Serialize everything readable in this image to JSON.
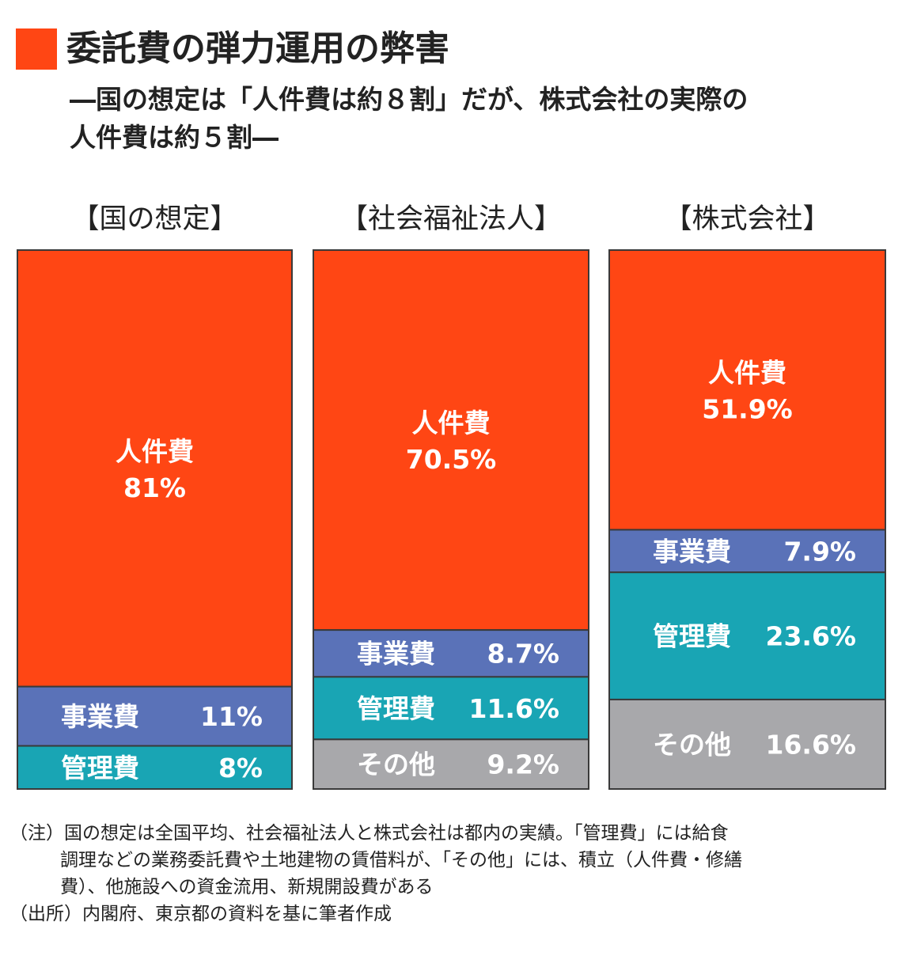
{
  "header": {
    "title": "委託費の弾力運用の弊害",
    "subtitle_line1": "―国の想定は「人件費は約８割」だが、株式会社の実際の",
    "subtitle_line2": "人件費は約５割―"
  },
  "chart_data": {
    "type": "bar",
    "stacked": true,
    "percent": true,
    "categories": [
      "【国の想定】",
      "【社会福祉法人】",
      "【株式会社】"
    ],
    "series": [
      {
        "name": "人件費",
        "values": [
          81,
          70.5,
          51.9
        ],
        "labels": [
          "81%",
          "70.5%",
          "51.9%"
        ],
        "color": "#ff4614"
      },
      {
        "name": "事業費",
        "values": [
          11,
          8.7,
          7.9
        ],
        "labels": [
          "11%",
          "8.7%",
          "7.9%"
        ],
        "color": "#5a72b8"
      },
      {
        "name": "管理費",
        "values": [
          8,
          11.6,
          23.6
        ],
        "labels": [
          "8%",
          "11.6%",
          "23.6%"
        ],
        "color": "#19a5b4"
      },
      {
        "name": "その他",
        "values": [
          0,
          9.2,
          16.6
        ],
        "labels": [
          "",
          "9.2%",
          "16.6%"
        ],
        "color": "#a8a8ab"
      }
    ]
  },
  "notes": {
    "line1": "（注）国の想定は全国平均、社会福祉法人と株式会社は都内の実績。「管理費」には給食",
    "line2": "調理などの業務委託費や土地建物の賃借料が、「その他」には、積立（人件費・修繕",
    "line3": "費）、他施設への資金流用、新規開設費がある",
    "line4": "（出所）内閣府、東京都の資料を基に筆者作成"
  }
}
